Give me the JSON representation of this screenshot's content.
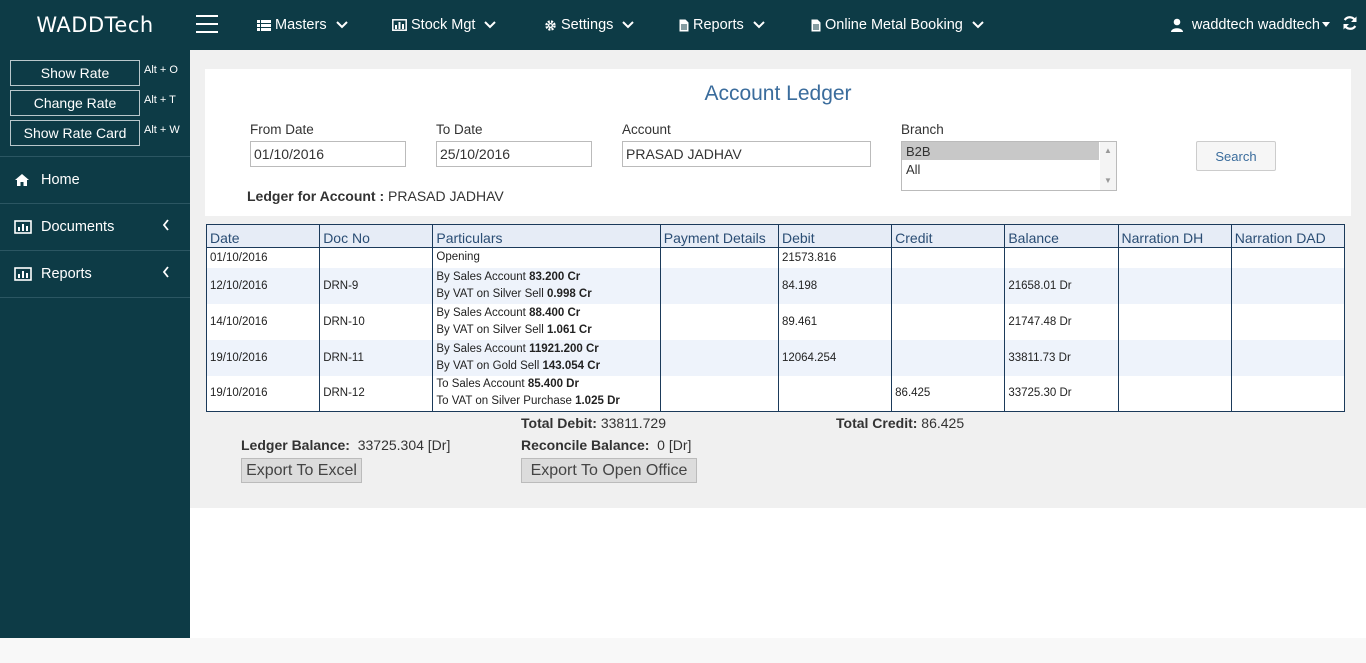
{
  "brand": "WADDTech",
  "rate_buttons": [
    {
      "label": "Show Rate",
      "shortcut": "Alt + O"
    },
    {
      "label": "Change Rate",
      "shortcut": "Alt + T"
    },
    {
      "label": "Show Rate Card",
      "shortcut": "Alt + W"
    }
  ],
  "sidebar": {
    "items": [
      {
        "label": "Home",
        "icon": "home-icon"
      },
      {
        "label": "Documents",
        "icon": "bar-chart-icon"
      },
      {
        "label": "Reports",
        "icon": "bar-chart-icon"
      }
    ]
  },
  "topnav": {
    "items": [
      {
        "label": "Masters",
        "icon": "grid-icon"
      },
      {
        "label": "Stock Mgt",
        "icon": "bar-chart-icon"
      },
      {
        "label": "Settings",
        "icon": "gear-icon"
      },
      {
        "label": "Reports",
        "icon": "file-icon"
      },
      {
        "label": "Online Metal Booking",
        "icon": "file-icon"
      }
    ],
    "user": "waddtech waddtech"
  },
  "page": {
    "title": "Account Ledger",
    "from_label": "From Date",
    "from_value": "01/10/2016",
    "to_label": "To Date",
    "to_value": "25/10/2016",
    "account_label": "Account",
    "account_value": "PRASAD JADHAV",
    "branch_label": "Branch",
    "branch_options": [
      "B2B",
      "All"
    ],
    "search_label": "Search",
    "ledger_for_label": "Ledger for Account :",
    "ledger_for_value": "PRASAD JADHAV"
  },
  "table": {
    "headers": [
      "Date",
      "Doc No",
      "Particulars",
      "Payment Details",
      "Debit",
      "Credit",
      "Balance",
      "Narration DH",
      "Narration DAD"
    ],
    "rows": [
      {
        "date": "01/10/2016",
        "doc": "",
        "p1_text": "Opening",
        "p1_amt": "",
        "p2_text": "",
        "p2_amt": "",
        "payment": "",
        "debit": "21573.816",
        "credit": "",
        "balance": "",
        "ndh": "",
        "ndad": ""
      },
      {
        "date": "12/10/2016",
        "doc": "DRN-9",
        "p1_text": "By Sales Account",
        "p1_amt": "83.200 Cr",
        "p2_text": "By VAT on Silver Sell",
        "p2_amt": "0.998 Cr",
        "payment": "",
        "debit": "84.198",
        "credit": "",
        "balance": "21658.01 Dr",
        "ndh": "",
        "ndad": ""
      },
      {
        "date": "14/10/2016",
        "doc": "DRN-10",
        "p1_text": "By Sales Account",
        "p1_amt": "88.400 Cr",
        "p2_text": "By VAT on Silver Sell",
        "p2_amt": "1.061 Cr",
        "payment": "",
        "debit": "89.461",
        "credit": "",
        "balance": "21747.48 Dr",
        "ndh": "",
        "ndad": ""
      },
      {
        "date": "19/10/2016",
        "doc": "DRN-11",
        "p1_text": "By Sales Account",
        "p1_amt": "11921.200 Cr",
        "p2_text": "By VAT on Gold Sell",
        "p2_amt": "143.054 Cr",
        "payment": "",
        "debit": "12064.254",
        "credit": "",
        "balance": "33811.73 Dr",
        "ndh": "",
        "ndad": ""
      },
      {
        "date": "19/10/2016",
        "doc": "DRN-12",
        "p1_text": "To Sales Account",
        "p1_amt": "85.400 Dr",
        "p2_text": "To VAT on Silver Purchase",
        "p2_amt": "1.025 Dr",
        "payment": "",
        "debit": "",
        "credit": "86.425",
        "balance": "33725.30 Dr",
        "ndh": "",
        "ndad": ""
      }
    ]
  },
  "totals": {
    "debit_label": "Total Debit:",
    "debit_value": "33811.729",
    "credit_label": "Total Credit:",
    "credit_value": "86.425",
    "ledger_balance_label": "Ledger Balance:",
    "ledger_balance_value": "33725.304 [Dr]",
    "reconcile_label": "Reconcile Balance:",
    "reconcile_value": "0 [Dr]",
    "export_excel": "Export To Excel",
    "export_office": "Export To Open Office"
  }
}
